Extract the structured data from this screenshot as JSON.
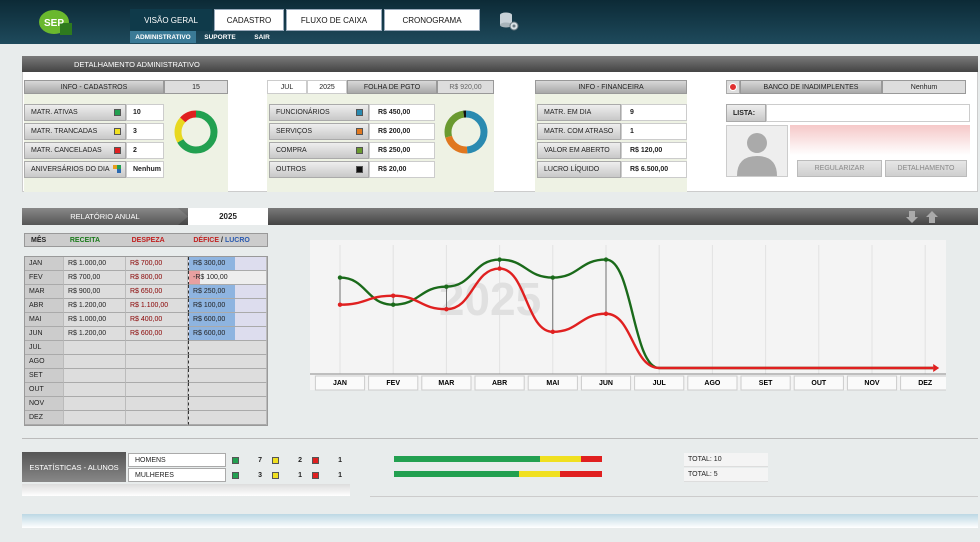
{
  "nav": {
    "tabs": [
      "VISÃO GERAL",
      "CADASTRO",
      "FLUXO DE CAIXA",
      "CRONOGRAMA"
    ],
    "subtabs": [
      "ADMINISTRATIVO",
      "SUPORTE",
      "SAIR"
    ],
    "logo": "SEP"
  },
  "detail": {
    "title": "DETALHAMENTO ADMINISTRATIVO",
    "cadastros": {
      "title": "INFO - CADASTROS",
      "count": "15",
      "rows": [
        {
          "label": "MATR. ATIVAS",
          "value": "10",
          "color": "#22a050"
        },
        {
          "label": "MATR. TRANCADAS",
          "value": "3",
          "color": "#f0e020"
        },
        {
          "label": "MATR. CANCELADAS",
          "value": "2",
          "color": "#e02020"
        },
        {
          "label": "ANIVERSÁRIOS DO DIA",
          "value": "Nenhum",
          "color": "none"
        }
      ]
    },
    "folha": {
      "month": "JUL",
      "year": "2025",
      "title": "FOLHA DE PGTO",
      "total": "R$ 920,00",
      "rows": [
        {
          "label": "FUNCIONÁRIOS",
          "value": "R$ 450,00",
          "color": "#2a8ab0"
        },
        {
          "label": "SERVIÇOS",
          "value": "R$ 200,00",
          "color": "#e07820"
        },
        {
          "label": "COMPRA",
          "value": "R$ 250,00",
          "color": "#6a9a30"
        },
        {
          "label": "OUTROS",
          "value": "R$ 20,00",
          "color": "#111111"
        }
      ]
    },
    "financeira": {
      "title": "INFO - FINANCEIRA",
      "rows": [
        {
          "label": "MATR. EM DIA",
          "value": "9"
        },
        {
          "label": "MATR. COM ATRASO",
          "value": "1"
        },
        {
          "label": "VALOR EM ABERTO",
          "value": "R$ 120,00"
        },
        {
          "label": "LUCRO LÍQUIDO",
          "value": "R$ 6.500,00"
        }
      ]
    },
    "inadimplentes": {
      "title": "BANCO DE INADIMPLENTES",
      "status": "Nenhum",
      "list_label": "LISTA:",
      "btn_regularizar": "REGULARIZAR",
      "btn_detalhamento": "DETALHAMENTO"
    }
  },
  "annual": {
    "title": "RELATÓRIO ANUAL",
    "year": "2025",
    "headers": {
      "mes": "MÊS",
      "receita": "RECEITA",
      "despesa": "DESPEZA",
      "deficit": "DÉFICE",
      "sep": "/",
      "lucro": "LUCRO"
    },
    "rows": [
      {
        "m": "JAN",
        "r": "R$ 1.000,00",
        "d": "R$ 700,00",
        "l": "R$ 300,00"
      },
      {
        "m": "FEV",
        "r": "R$ 700,00",
        "d": "R$ 800,00",
        "l": "-R$ 100,00"
      },
      {
        "m": "MAR",
        "r": "R$ 900,00",
        "d": "R$ 650,00",
        "l": "R$ 250,00"
      },
      {
        "m": "ABR",
        "r": "R$ 1.200,00",
        "d": "R$ 1.100,00",
        "l": "R$ 100,00"
      },
      {
        "m": "MAI",
        "r": "R$ 1.000,00",
        "d": "R$ 400,00",
        "l": "R$ 600,00"
      },
      {
        "m": "JUN",
        "r": "R$ 1.200,00",
        "d": "R$ 600,00",
        "l": "R$ 600,00"
      },
      {
        "m": "JUL",
        "r": "",
        "d": "",
        "l": ""
      },
      {
        "m": "AGO",
        "r": "",
        "d": "",
        "l": ""
      },
      {
        "m": "SET",
        "r": "",
        "d": "",
        "l": ""
      },
      {
        "m": "OUT",
        "r": "",
        "d": "",
        "l": ""
      },
      {
        "m": "NOV",
        "r": "",
        "d": "",
        "l": ""
      },
      {
        "m": "DEZ",
        "r": "",
        "d": "",
        "l": ""
      }
    ]
  },
  "chart_data": {
    "type": "line",
    "categories": [
      "JAN",
      "FEV",
      "MAR",
      "ABR",
      "MAI",
      "JUN",
      "JUL",
      "AGO",
      "SET",
      "OUT",
      "NOV",
      "DEZ"
    ],
    "watermark": "2025",
    "series": [
      {
        "color": "#1a6a1a",
        "values": [
          1000,
          700,
          900,
          1200,
          1000,
          1200,
          0,
          0,
          0,
          0,
          0,
          0
        ]
      },
      {
        "color": "#e02020",
        "values": [
          700,
          800,
          650,
          1100,
          400,
          600,
          0,
          0,
          0,
          0,
          0,
          0
        ]
      }
    ]
  },
  "stats": {
    "title": "ESTATÍSTICAS - ALUNOS",
    "rows": [
      {
        "label": "HOMENS",
        "a": "7",
        "b": "2",
        "c": "1",
        "total": "TOTAL: 10",
        "bar": [
          0.7,
          0.2,
          0.1
        ]
      },
      {
        "label": "MULHERES",
        "a": "3",
        "b": "1",
        "c": "1",
        "total": "TOTAL: 5",
        "bar": [
          0.6,
          0.2,
          0.2
        ]
      }
    ]
  }
}
